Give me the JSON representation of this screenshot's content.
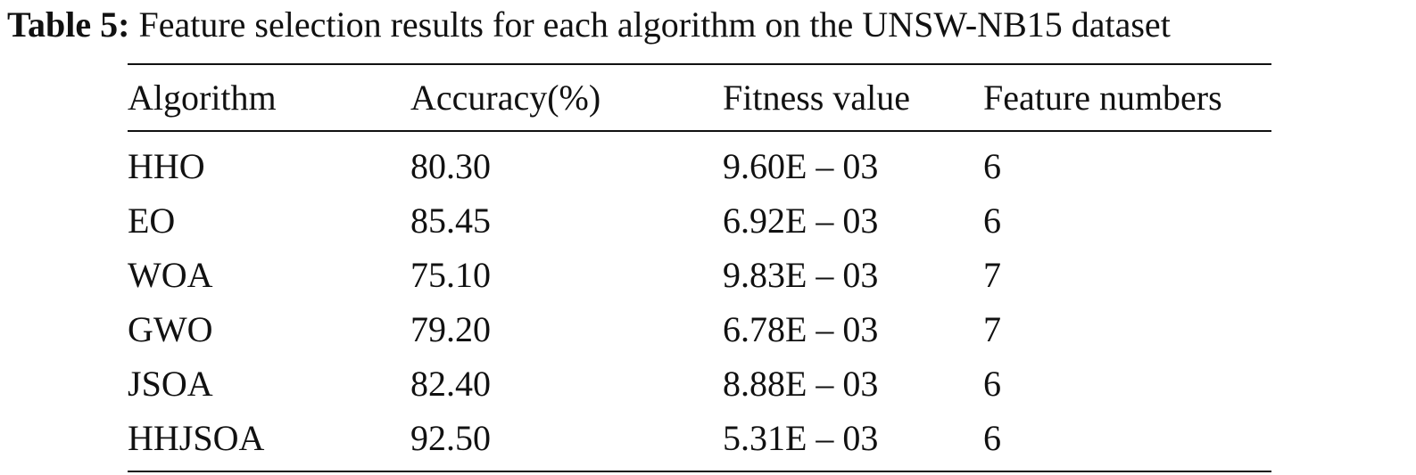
{
  "caption": {
    "label": "Table 5:",
    "text": "Feature selection results for each algorithm on the UNSW-NB15 dataset"
  },
  "table": {
    "headers": [
      "Algorithm",
      "Accuracy(%)",
      "Fitness value",
      "Feature numbers"
    ],
    "rows": [
      [
        "HHO",
        "80.30",
        "9.60E – 03",
        "6"
      ],
      [
        "EO",
        "85.45",
        "6.92E – 03",
        "6"
      ],
      [
        "WOA",
        "75.10",
        "9.83E – 03",
        "7"
      ],
      [
        "GWO",
        "79.20",
        "6.78E – 03",
        "7"
      ],
      [
        "JSOA",
        "82.40",
        "8.88E – 03",
        "6"
      ],
      [
        "HHJSOA",
        "92.50",
        "5.31E – 03",
        "6"
      ]
    ]
  }
}
